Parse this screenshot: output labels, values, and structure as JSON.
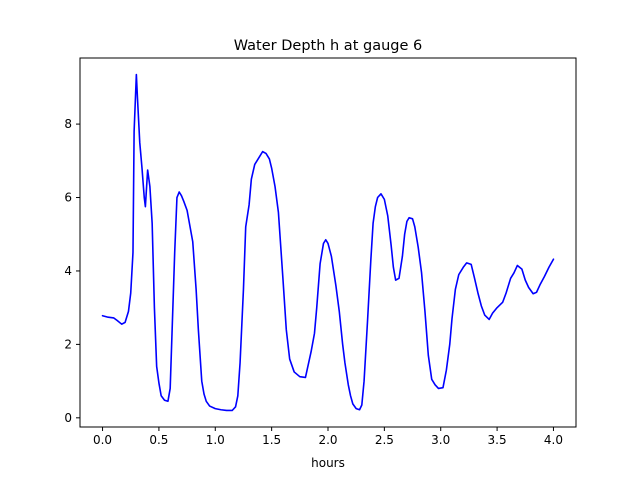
{
  "chart_data": {
    "type": "line",
    "title": "Water Depth h at gauge 6",
    "xlabel": "hours",
    "ylabel": "",
    "xlim": [
      -0.2,
      4.2
    ],
    "ylim": [
      -0.25,
      9.8
    ],
    "xticks": [
      0.0,
      0.5,
      1.0,
      1.5,
      2.0,
      2.5,
      3.0,
      3.5,
      4.0
    ],
    "xtick_labels": [
      "0.0",
      "0.5",
      "1.0",
      "1.5",
      "2.0",
      "2.5",
      "3.0",
      "3.5",
      "4.0"
    ],
    "yticks": [
      0,
      2,
      4,
      6,
      8
    ],
    "ytick_labels": [
      "0",
      "2",
      "4",
      "6",
      "8"
    ],
    "grid": false,
    "legend": "none",
    "series": [
      {
        "color": "#0000ff",
        "x": [
          0.0,
          0.05,
          0.1,
          0.13,
          0.17,
          0.2,
          0.23,
          0.25,
          0.27,
          0.28,
          0.3,
          0.31,
          0.33,
          0.35,
          0.37,
          0.38,
          0.4,
          0.42,
          0.44,
          0.46,
          0.48,
          0.5,
          0.52,
          0.55,
          0.58,
          0.6,
          0.64,
          0.66,
          0.68,
          0.7,
          0.72,
          0.75,
          0.8,
          0.83,
          0.85,
          0.88,
          0.9,
          0.92,
          0.95,
          1.0,
          1.05,
          1.1,
          1.15,
          1.18,
          1.2,
          1.22,
          1.25,
          1.27,
          1.3,
          1.32,
          1.35,
          1.37,
          1.4,
          1.42,
          1.45,
          1.48,
          1.5,
          1.53,
          1.56,
          1.6,
          1.63,
          1.66,
          1.7,
          1.75,
          1.8,
          1.85,
          1.88,
          1.9,
          1.93,
          1.96,
          1.98,
          2.0,
          2.03,
          2.07,
          2.1,
          2.13,
          2.15,
          2.18,
          2.2,
          2.22,
          2.25,
          2.28,
          2.3,
          2.32,
          2.35,
          2.38,
          2.4,
          2.42,
          2.44,
          2.47,
          2.5,
          2.53,
          2.56,
          2.58,
          2.6,
          2.63,
          2.66,
          2.68,
          2.7,
          2.72,
          2.75,
          2.77,
          2.8,
          2.83,
          2.86,
          2.89,
          2.92,
          2.95,
          2.98,
          3.02,
          3.05,
          3.08,
          3.1,
          3.13,
          3.16,
          3.2,
          3.23,
          3.27,
          3.3,
          3.33,
          3.36,
          3.39,
          3.43,
          3.46,
          3.5,
          3.55,
          3.58,
          3.62,
          3.65,
          3.68,
          3.72,
          3.75,
          3.78,
          3.82,
          3.85,
          3.88,
          3.92,
          3.96,
          4.0
        ],
        "y": [
          2.78,
          2.74,
          2.72,
          2.65,
          2.55,
          2.6,
          2.9,
          3.4,
          4.5,
          7.8,
          9.35,
          8.7,
          7.5,
          6.8,
          6.0,
          5.75,
          6.75,
          6.3,
          5.3,
          3.0,
          1.4,
          0.95,
          0.6,
          0.48,
          0.45,
          0.8,
          4.5,
          6.0,
          6.15,
          6.05,
          5.9,
          5.65,
          4.8,
          3.5,
          2.4,
          1.0,
          0.65,
          0.45,
          0.32,
          0.25,
          0.22,
          0.2,
          0.2,
          0.3,
          0.6,
          1.5,
          3.5,
          5.2,
          5.8,
          6.5,
          6.9,
          7.0,
          7.15,
          7.25,
          7.2,
          7.05,
          6.8,
          6.3,
          5.6,
          3.8,
          2.4,
          1.6,
          1.25,
          1.12,
          1.1,
          1.8,
          2.3,
          3.0,
          4.2,
          4.75,
          4.85,
          4.75,
          4.4,
          3.6,
          2.9,
          2.0,
          1.5,
          0.9,
          0.6,
          0.38,
          0.25,
          0.22,
          0.35,
          1.0,
          2.6,
          4.3,
          5.3,
          5.75,
          6.0,
          6.1,
          5.95,
          5.5,
          4.7,
          4.1,
          3.75,
          3.8,
          4.4,
          5.0,
          5.35,
          5.45,
          5.42,
          5.2,
          4.65,
          3.95,
          2.9,
          1.7,
          1.05,
          0.9,
          0.8,
          0.82,
          1.3,
          2.0,
          2.7,
          3.5,
          3.9,
          4.1,
          4.22,
          4.18,
          3.8,
          3.4,
          3.05,
          2.8,
          2.68,
          2.85,
          3.0,
          3.15,
          3.4,
          3.8,
          3.95,
          4.15,
          4.05,
          3.75,
          3.55,
          3.38,
          3.42,
          3.62,
          3.85,
          4.1,
          4.32
        ]
      }
    ]
  }
}
